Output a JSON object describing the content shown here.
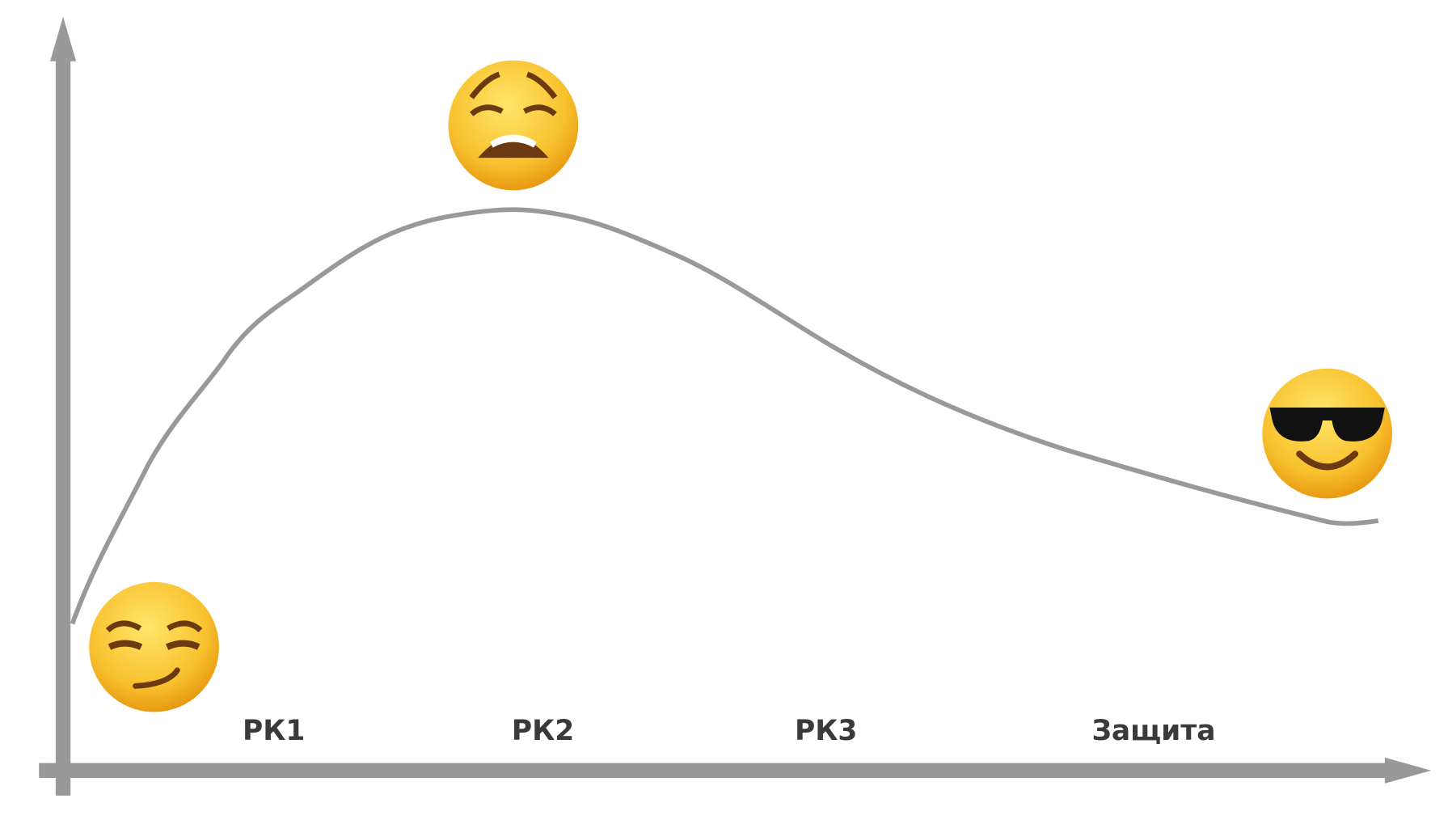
{
  "stages": [
    "РК1",
    "РК2",
    "РК3",
    "Защита"
  ]
}
